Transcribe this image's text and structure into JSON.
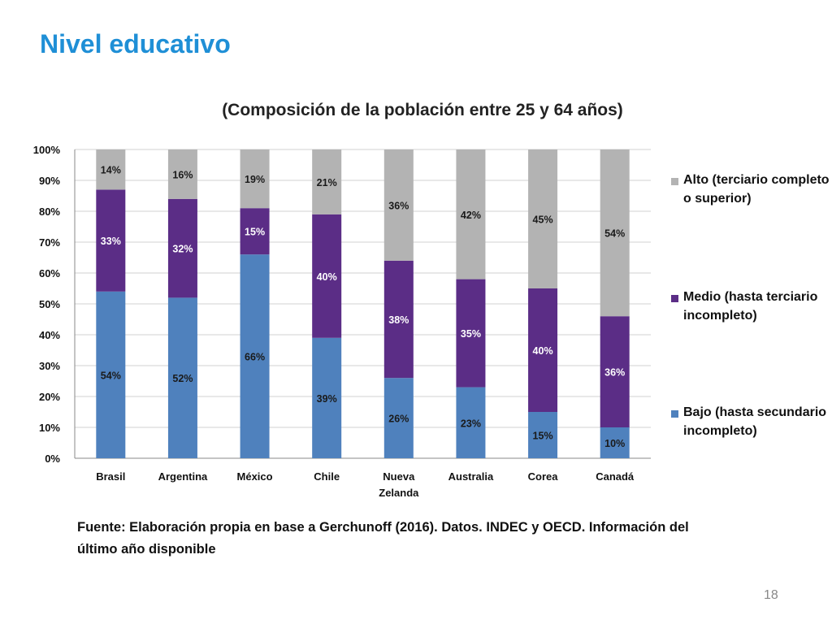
{
  "slide": {
    "title": "Nivel educativo",
    "source": "Fuente: Elaboración propia en base a Gerchunoff (2016). Datos. INDEC y OECD. Información del último año disponible",
    "page_number": "18"
  },
  "chart_data": {
    "type": "bar",
    "stacked": true,
    "title": "(Composición de la población entre 25 y 64 años)",
    "xlabel": "",
    "ylabel": "",
    "ylim": [
      0,
      100
    ],
    "y_ticks": [
      "0%",
      "10%",
      "20%",
      "30%",
      "40%",
      "50%",
      "60%",
      "70%",
      "80%",
      "90%",
      "100%"
    ],
    "categories": [
      "Brasil",
      "Argentina",
      "México",
      "Chile",
      "Nueva Zelanda",
      "Australia",
      "Corea",
      "Canadá"
    ],
    "category_labels": [
      [
        "Brasil"
      ],
      [
        "Argentina"
      ],
      [
        "México"
      ],
      [
        "Chile"
      ],
      [
        "Nueva",
        "Zelanda"
      ],
      [
        "Australia"
      ],
      [
        "Corea"
      ],
      [
        "Canadá"
      ]
    ],
    "series": [
      {
        "name": "Bajo (hasta secundario incompleto)",
        "color": "#4f81bd",
        "label_color": "#1a1a1a",
        "values": [
          54,
          52,
          66,
          39,
          26,
          23,
          15,
          10
        ],
        "labels": [
          "54%",
          "52%",
          "66%",
          "39%",
          "26%",
          "23%",
          "15%",
          "10%"
        ]
      },
      {
        "name": "Medio (hasta terciario incompleto)",
        "color": "#5b2d86",
        "label_color": "#ffffff",
        "values": [
          33,
          32,
          15,
          40,
          38,
          35,
          40,
          36
        ],
        "labels": [
          "33%",
          "32%",
          "15%",
          "40%",
          "38%",
          "35%",
          "40%",
          "36%"
        ]
      },
      {
        "name": "Alto (terciario completo o superior)",
        "color": "#b3b3b3",
        "label_color": "#1a1a1a",
        "values": [
          14,
          16,
          19,
          21,
          36,
          42,
          45,
          54
        ],
        "labels": [
          "14%",
          "16%",
          "19%",
          "21%",
          "36%",
          "42%",
          "45%",
          "54%"
        ]
      }
    ],
    "legend": {
      "position": "right",
      "items": [
        {
          "label": "Alto (terciario completo o superior)",
          "color": "#b3b3b3"
        },
        {
          "label": "Medio (hasta terciario incompleto)",
          "color": "#5b2d86"
        },
        {
          "label": "Bajo (hasta secundario incompleto)",
          "color": "#4f81bd"
        }
      ]
    },
    "grid": true
  }
}
